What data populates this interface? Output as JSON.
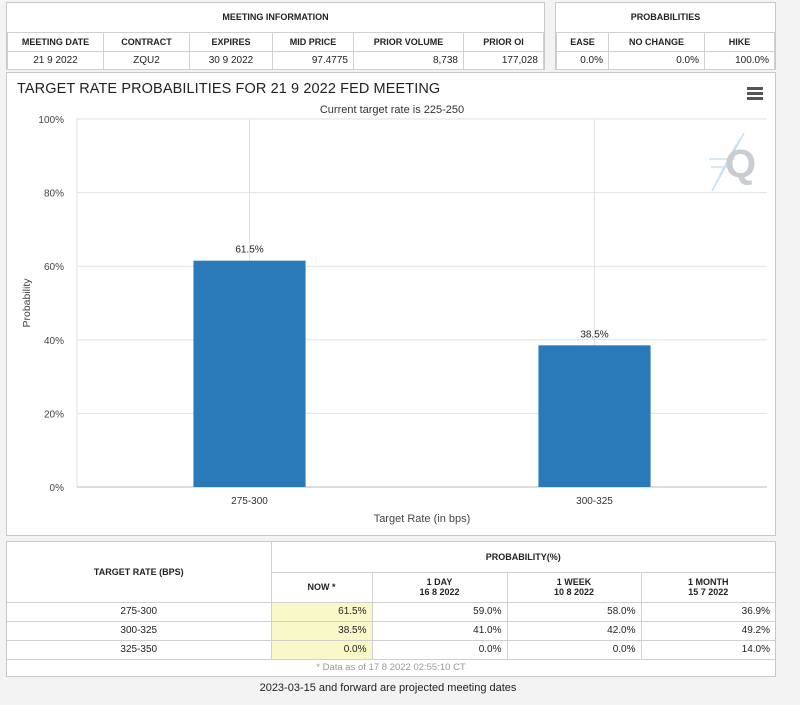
{
  "meeting_info": {
    "section_title": "MEETING INFORMATION",
    "columns": [
      "MEETING DATE",
      "CONTRACT",
      "EXPIRES",
      "MID PRICE",
      "PRIOR VOLUME",
      "PRIOR OI"
    ],
    "row": [
      "21 9 2022",
      "ZQU2",
      "30 9 2022",
      "97.4775",
      "8,738",
      "177,028"
    ]
  },
  "probabilities": {
    "section_title": "PROBABILITIES",
    "columns": [
      "EASE",
      "NO CHANGE",
      "HIKE"
    ],
    "row": [
      "0.0%",
      "0.0%",
      "100.0%"
    ]
  },
  "chart_data": {
    "type": "bar",
    "title": "TARGET RATE PROBABILITIES FOR 21 9 2022 FED MEETING",
    "subtitle": "Current target rate is 225-250",
    "categories": [
      "275-300",
      "300-325"
    ],
    "values": [
      61.5,
      38.5
    ],
    "data_labels": [
      "61.5%",
      "38.5%"
    ],
    "xlabel": "Target Rate (in bps)",
    "ylabel": "Probability",
    "ylim": [
      0,
      100
    ],
    "yticks": [
      0,
      20,
      40,
      60,
      80,
      100
    ],
    "ytick_labels": [
      "0%",
      "20%",
      "40%",
      "60%",
      "80%",
      "100%"
    ],
    "bar_color": "#2a7ab9",
    "grid": true,
    "legend": "none"
  },
  "rates_table": {
    "target_header": "TARGET RATE (BPS)",
    "prob_header": "PROBABILITY(%)",
    "now_label": "NOW *",
    "periods": [
      {
        "label": "1 DAY",
        "date": "16 8 2022"
      },
      {
        "label": "1 WEEK",
        "date": "10 8 2022"
      },
      {
        "label": "1 MONTH",
        "date": "15 7 2022"
      }
    ],
    "rows": [
      {
        "rate": "275-300",
        "now": "61.5%",
        "day": "59.0%",
        "week": "58.0%",
        "month": "36.9%"
      },
      {
        "rate": "300-325",
        "now": "38.5%",
        "day": "41.0%",
        "week": "42.0%",
        "month": "49.2%"
      },
      {
        "rate": "325-350",
        "now": "0.0%",
        "day": "0.0%",
        "week": "0.0%",
        "month": "14.0%"
      }
    ],
    "data_note": "* Data as of 17 8 2022 02:55:10 CT"
  },
  "footnote": "2023-03-15 and forward are projected meeting dates"
}
